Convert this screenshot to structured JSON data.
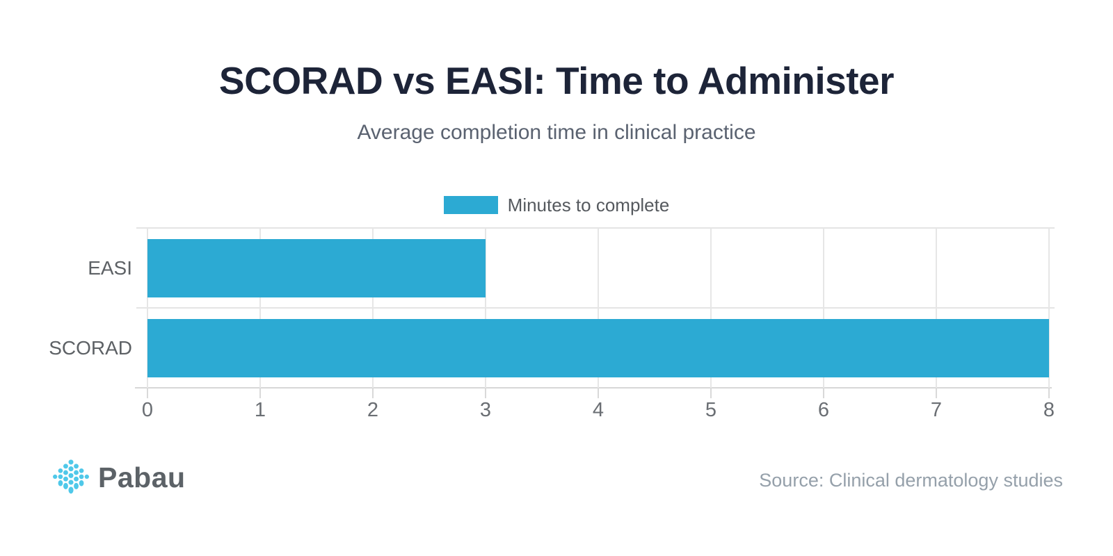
{
  "title": "SCORAD vs EASI: Time to Administer",
  "subtitle": "Average completion time in clinical practice",
  "legend": {
    "label": "Minutes to complete",
    "swatch_color": "#2CAAD3"
  },
  "chart_data": {
    "type": "bar",
    "orientation": "horizontal",
    "title": "SCORAD vs EASI: Time to Administer",
    "subtitle": "Average completion time in clinical practice",
    "categories": [
      "EASI",
      "SCORAD"
    ],
    "series": [
      {
        "name": "Minutes to complete",
        "values": [
          3,
          8
        ]
      }
    ],
    "xlabel": "",
    "ylabel": "",
    "xlim": [
      0,
      8
    ],
    "x_ticks": [
      0,
      1,
      2,
      3,
      4,
      5,
      6,
      7,
      8
    ],
    "bar_color": "#2CAAD3",
    "grid": true,
    "legend_position": "top-center"
  },
  "footer": {
    "brand_name": "Pabau",
    "source": "Source: Clinical dermatology studies"
  },
  "colors": {
    "accent": "#2CAAD3",
    "logo_accent": "#4FC8E9",
    "title_text": "#1D2438",
    "subtitle_text": "#5A6270",
    "axis_text": "#63676C",
    "source_text": "#95A0AA",
    "gridline": "#E3E3E3",
    "background": "#FFFFFF"
  }
}
